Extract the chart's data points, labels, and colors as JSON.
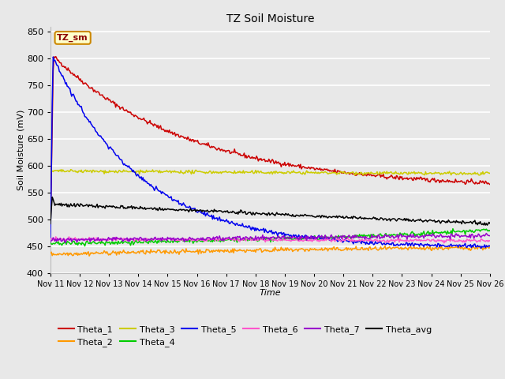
{
  "title": "TZ Soil Moisture",
  "xlabel": "Time",
  "ylabel": "Soil Moisture (mV)",
  "ylim": [
    400,
    860
  ],
  "yticks": [
    400,
    450,
    500,
    550,
    600,
    650,
    700,
    750,
    800,
    850
  ],
  "x_labels": [
    "Nov 11",
    "Nov 12",
    "Nov 13",
    "Nov 14",
    "Nov 15",
    "Nov 16",
    "Nov 17",
    "Nov 18",
    "Nov 19",
    "Nov 20",
    "Nov 21",
    "Nov 22",
    "Nov 23",
    "Nov 24",
    "Nov 25",
    "Nov 26"
  ],
  "legend_label": "TZ_sm",
  "background_color": "#e8e8e8",
  "grid_color": "#ffffff",
  "colors": {
    "Theta_1": "#cc0000",
    "Theta_2": "#ff9900",
    "Theta_3": "#cccc00",
    "Theta_4": "#00cc00",
    "Theta_5": "#0000ee",
    "Theta_6": "#ff55cc",
    "Theta_7": "#9900cc",
    "Theta_avg": "#000000"
  },
  "legend_ncol1": 6,
  "legend_ncol2": 2,
  "figsize": [
    6.4,
    4.8
  ],
  "dpi": 100
}
